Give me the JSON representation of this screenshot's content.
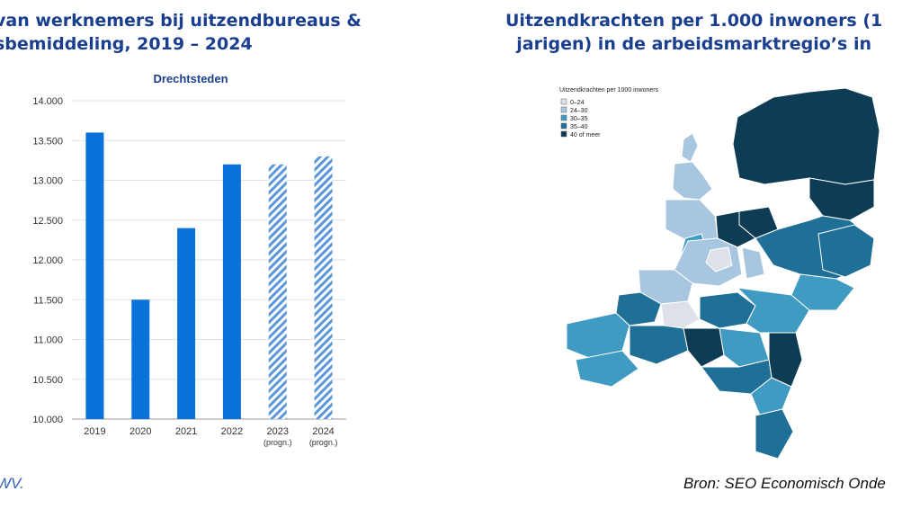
{
  "left_title": [
    "van werknemers bij uitzendbureaus &",
    "sbemiddeling, 2019 – 2024"
  ],
  "right_title": [
    "Uitzendkrachten per 1.000 inwoners (1",
    "jarigen) in de arbeidsmarktregio’s in"
  ],
  "footer_left": "WV.",
  "footer_right": "Bron: SEO Economisch Onde",
  "chart_data": {
    "type": "bar",
    "title": "Drechtsteden",
    "xlabel": "",
    "ylabel": "",
    "categories": [
      "2019",
      "2020",
      "2021",
      "2022",
      "2023",
      "2024"
    ],
    "category_sublabels": [
      "",
      "",
      "",
      "",
      "(progn.)",
      "(progn.)"
    ],
    "values": [
      13600,
      11500,
      12400,
      13200,
      13200,
      13300
    ],
    "forecast": [
      false,
      false,
      false,
      false,
      true,
      true
    ],
    "ylim": [
      10000,
      14000
    ],
    "yticks": [
      10000,
      10500,
      11000,
      11500,
      12000,
      12500,
      13000,
      13500,
      14000
    ],
    "ytick_labels": [
      "10.000",
      "10.500",
      "11.000",
      "11.500",
      "12.000",
      "12.500",
      "13.000",
      "13.500",
      "14.000"
    ],
    "grid": true,
    "colors": {
      "bar": "#0a72d9",
      "forecast_stripe": "#5b97d8"
    }
  },
  "map": {
    "legend_title": "Uitzendkrachten per 1000 inwoners",
    "legend": [
      {
        "label": "0–24",
        "color": "#dde2ea"
      },
      {
        "label": "24–30",
        "color": "#a8c6e0"
      },
      {
        "label": "30–35",
        "color": "#3f9bc2"
      },
      {
        "label": "35–40",
        "color": "#1f6f96"
      },
      {
        "label": "40 of meer",
        "color": "#0e3c55"
      }
    ]
  }
}
